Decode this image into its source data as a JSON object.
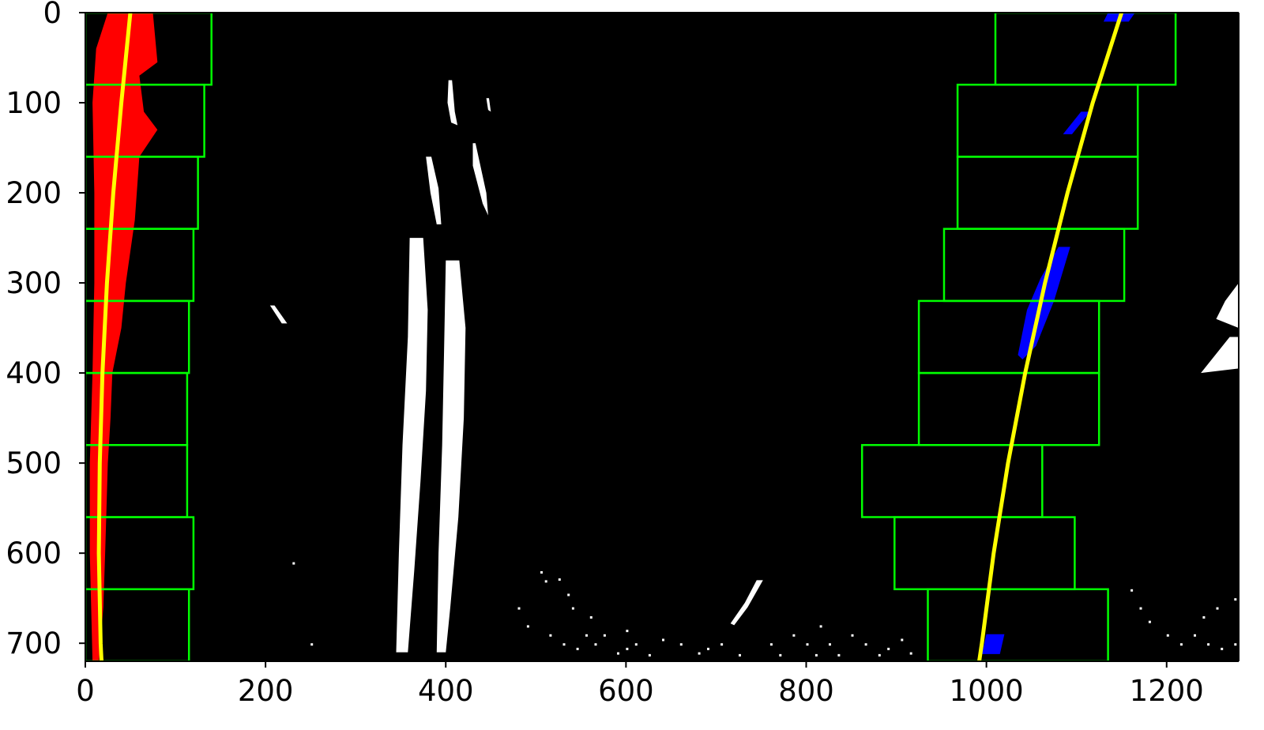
{
  "chart_data": {
    "type": "scatter",
    "title": "",
    "xlabel": "",
    "ylabel": "",
    "xlim": [
      0,
      1280
    ],
    "ylim": [
      720,
      0
    ],
    "grid": false,
    "legend": "none",
    "x_ticks": [
      {
        "value": 0,
        "label": "0"
      },
      {
        "value": 200,
        "label": "200"
      },
      {
        "value": 400,
        "label": "400"
      },
      {
        "value": 600,
        "label": "600"
      },
      {
        "value": 800,
        "label": "800"
      },
      {
        "value": 1000,
        "label": "1000"
      },
      {
        "value": 1200,
        "label": "1200"
      }
    ],
    "y_ticks": [
      {
        "value": 0,
        "label": "0"
      },
      {
        "value": 100,
        "label": "100"
      },
      {
        "value": 200,
        "label": "200"
      },
      {
        "value": 300,
        "label": "300"
      },
      {
        "value": 400,
        "label": "400"
      },
      {
        "value": 500,
        "label": "500"
      },
      {
        "value": 600,
        "label": "600"
      },
      {
        "value": 700,
        "label": "700"
      }
    ],
    "colors": {
      "background": "#000000",
      "road_pixels": "#ffffff",
      "left_lane_pixels": "#ff0000",
      "right_lane_pixels": "#0000ff",
      "fit_line": "#ffff00",
      "window": "#00ff00"
    },
    "left_windows": [
      {
        "x1": 0,
        "x2": 140,
        "y1": 0,
        "y2": 80
      },
      {
        "x1": 0,
        "x2": 132,
        "y1": 80,
        "y2": 160
      },
      {
        "x1": 0,
        "x2": 125,
        "y1": 160,
        "y2": 240
      },
      {
        "x1": 0,
        "x2": 120,
        "y1": 240,
        "y2": 320
      },
      {
        "x1": 0,
        "x2": 115,
        "y1": 320,
        "y2": 400
      },
      {
        "x1": 0,
        "x2": 113,
        "y1": 400,
        "y2": 480
      },
      {
        "x1": 0,
        "x2": 113,
        "y1": 480,
        "y2": 560
      },
      {
        "x1": 0,
        "x2": 120,
        "y1": 560,
        "y2": 640
      },
      {
        "x1": 0,
        "x2": 115,
        "y1": 640,
        "y2": 720
      }
    ],
    "right_windows": [
      {
        "x1": 1010,
        "x2": 1210,
        "y1": 0,
        "y2": 80
      },
      {
        "x1": 968,
        "x2": 1168,
        "y1": 80,
        "y2": 160
      },
      {
        "x1": 968,
        "x2": 1168,
        "y1": 160,
        "y2": 240
      },
      {
        "x1": 953,
        "x2": 1153,
        "y1": 240,
        "y2": 320
      },
      {
        "x1": 925,
        "x2": 1125,
        "y1": 320,
        "y2": 400
      },
      {
        "x1": 925,
        "x2": 1125,
        "y1": 400,
        "y2": 480
      },
      {
        "x1": 862,
        "x2": 1062,
        "y1": 480,
        "y2": 560
      },
      {
        "x1": 898,
        "x2": 1098,
        "y1": 560,
        "y2": 640
      },
      {
        "x1": 935,
        "x2": 1135,
        "y1": 640,
        "y2": 720
      }
    ],
    "left_fit_line": [
      {
        "x": 50,
        "y": 0
      },
      {
        "x": 40,
        "y": 100
      },
      {
        "x": 31,
        "y": 200
      },
      {
        "x": 24,
        "y": 300
      },
      {
        "x": 19,
        "y": 400
      },
      {
        "x": 16,
        "y": 500
      },
      {
        "x": 15,
        "y": 600
      },
      {
        "x": 17,
        "y": 700
      },
      {
        "x": 18,
        "y": 720
      }
    ],
    "right_fit_line": [
      {
        "x": 1150,
        "y": 0
      },
      {
        "x": 1118,
        "y": 100
      },
      {
        "x": 1090,
        "y": 200
      },
      {
        "x": 1065,
        "y": 300
      },
      {
        "x": 1043,
        "y": 400
      },
      {
        "x": 1024,
        "y": 500
      },
      {
        "x": 1008,
        "y": 600
      },
      {
        "x": 995,
        "y": 700
      },
      {
        "x": 992,
        "y": 720
      }
    ],
    "left_lane_region": [
      {
        "x": 40,
        "y": 0
      },
      {
        "x": 75,
        "y": 0
      },
      {
        "x": 80,
        "y": 55
      },
      {
        "x": 60,
        "y": 70
      },
      {
        "x": 65,
        "y": 110
      },
      {
        "x": 80,
        "y": 130
      },
      {
        "x": 60,
        "y": 160
      },
      {
        "x": 55,
        "y": 230
      },
      {
        "x": 45,
        "y": 300
      },
      {
        "x": 40,
        "y": 350
      },
      {
        "x": 30,
        "y": 400
      },
      {
        "x": 28,
        "y": 450
      },
      {
        "x": 25,
        "y": 500
      },
      {
        "x": 22,
        "y": 600
      },
      {
        "x": 20,
        "y": 660
      },
      {
        "x": 15,
        "y": 720
      },
      {
        "x": 8,
        "y": 720
      },
      {
        "x": 5,
        "y": 600
      },
      {
        "x": 5,
        "y": 500
      },
      {
        "x": 8,
        "y": 400
      },
      {
        "x": 10,
        "y": 300
      },
      {
        "x": 10,
        "y": 200
      },
      {
        "x": 8,
        "y": 100
      },
      {
        "x": 12,
        "y": 40
      },
      {
        "x": 25,
        "y": 0
      }
    ],
    "right_lane_blobs": [
      [
        {
          "x": 1135,
          "y": 0
        },
        {
          "x": 1165,
          "y": 0
        },
        {
          "x": 1158,
          "y": 10
        },
        {
          "x": 1130,
          "y": 10
        }
      ],
      [
        {
          "x": 1105,
          "y": 110
        },
        {
          "x": 1115,
          "y": 110
        },
        {
          "x": 1095,
          "y": 135
        },
        {
          "x": 1085,
          "y": 135
        }
      ],
      [
        {
          "x": 1080,
          "y": 260
        },
        {
          "x": 1093,
          "y": 260
        },
        {
          "x": 1075,
          "y": 320
        },
        {
          "x": 1055,
          "y": 370
        },
        {
          "x": 1040,
          "y": 385
        },
        {
          "x": 1035,
          "y": 380
        },
        {
          "x": 1045,
          "y": 330
        },
        {
          "x": 1060,
          "y": 295
        }
      ],
      [
        {
          "x": 1000,
          "y": 690
        },
        {
          "x": 1020,
          "y": 690
        },
        {
          "x": 1015,
          "y": 712
        },
        {
          "x": 995,
          "y": 712
        }
      ]
    ],
    "road_marking_blobs": [
      [
        {
          "x": 360,
          "y": 250
        },
        {
          "x": 375,
          "y": 250
        },
        {
          "x": 380,
          "y": 330
        },
        {
          "x": 378,
          "y": 420
        },
        {
          "x": 372,
          "y": 520
        },
        {
          "x": 365,
          "y": 620
        },
        {
          "x": 358,
          "y": 710
        },
        {
          "x": 345,
          "y": 710
        },
        {
          "x": 348,
          "y": 600
        },
        {
          "x": 352,
          "y": 480
        },
        {
          "x": 358,
          "y": 360
        }
      ],
      [
        {
          "x": 400,
          "y": 275
        },
        {
          "x": 415,
          "y": 275
        },
        {
          "x": 422,
          "y": 350
        },
        {
          "x": 420,
          "y": 450
        },
        {
          "x": 414,
          "y": 560
        },
        {
          "x": 405,
          "y": 660
        },
        {
          "x": 400,
          "y": 710
        },
        {
          "x": 390,
          "y": 710
        },
        {
          "x": 392,
          "y": 600
        },
        {
          "x": 396,
          "y": 480
        },
        {
          "x": 398,
          "y": 380
        }
      ],
      [
        {
          "x": 403,
          "y": 75
        },
        {
          "x": 407,
          "y": 75
        },
        {
          "x": 410,
          "y": 110
        },
        {
          "x": 413,
          "y": 125
        },
        {
          "x": 406,
          "y": 122
        },
        {
          "x": 402,
          "y": 100
        }
      ],
      [
        {
          "x": 378,
          "y": 160
        },
        {
          "x": 384,
          "y": 160
        },
        {
          "x": 392,
          "y": 195
        },
        {
          "x": 395,
          "y": 235
        },
        {
          "x": 390,
          "y": 235
        },
        {
          "x": 383,
          "y": 200
        }
      ],
      [
        {
          "x": 430,
          "y": 145
        },
        {
          "x": 433,
          "y": 145
        },
        {
          "x": 445,
          "y": 200
        },
        {
          "x": 447,
          "y": 225
        },
        {
          "x": 441,
          "y": 212
        },
        {
          "x": 430,
          "y": 170
        }
      ],
      [
        {
          "x": 445,
          "y": 95
        },
        {
          "x": 448,
          "y": 95
        },
        {
          "x": 450,
          "y": 110
        },
        {
          "x": 447,
          "y": 108
        }
      ],
      [
        {
          "x": 1265,
          "y": 320
        },
        {
          "x": 1280,
          "y": 300
        },
        {
          "x": 1280,
          "y": 350
        },
        {
          "x": 1255,
          "y": 340
        }
      ],
      [
        {
          "x": 1270,
          "y": 360
        },
        {
          "x": 1280,
          "y": 360
        },
        {
          "x": 1280,
          "y": 395
        },
        {
          "x": 1238,
          "y": 400
        },
        {
          "x": 1250,
          "y": 385
        }
      ],
      [
        {
          "x": 745,
          "y": 630
        },
        {
          "x": 752,
          "y": 630
        },
        {
          "x": 735,
          "y": 660
        },
        {
          "x": 720,
          "y": 680
        },
        {
          "x": 716,
          "y": 678
        },
        {
          "x": 732,
          "y": 655
        }
      ],
      [
        {
          "x": 205,
          "y": 325
        },
        {
          "x": 210,
          "y": 325
        },
        {
          "x": 224,
          "y": 345
        },
        {
          "x": 218,
          "y": 345
        }
      ]
    ],
    "road_speckle_points": [
      [
        230,
        610
      ],
      [
        250,
        700
      ],
      [
        480,
        660
      ],
      [
        505,
        620
      ],
      [
        510,
        630
      ],
      [
        525,
        628
      ],
      [
        535,
        645
      ],
      [
        490,
        680
      ],
      [
        515,
        690
      ],
      [
        530,
        700
      ],
      [
        545,
        705
      ],
      [
        555,
        690
      ],
      [
        565,
        700
      ],
      [
        590,
        710
      ],
      [
        600,
        685
      ],
      [
        610,
        700
      ],
      [
        625,
        712
      ],
      [
        640,
        695
      ],
      [
        660,
        700
      ],
      [
        680,
        710
      ],
      [
        690,
        705
      ],
      [
        705,
        700
      ],
      [
        725,
        712
      ],
      [
        760,
        700
      ],
      [
        770,
        712
      ],
      [
        785,
        690
      ],
      [
        800,
        700
      ],
      [
        810,
        712
      ],
      [
        815,
        680
      ],
      [
        825,
        700
      ],
      [
        835,
        712
      ],
      [
        850,
        690
      ],
      [
        865,
        700
      ],
      [
        880,
        712
      ],
      [
        890,
        705
      ],
      [
        905,
        695
      ],
      [
        915,
        710
      ],
      [
        575,
        720
      ],
      [
        540,
        660
      ],
      [
        560,
        670
      ],
      [
        575,
        690
      ],
      [
        600,
        705
      ],
      [
        1160,
        640
      ],
      [
        1170,
        660
      ],
      [
        1180,
        675
      ],
      [
        1200,
        690
      ],
      [
        1215,
        700
      ],
      [
        1230,
        690
      ],
      [
        1245,
        700
      ],
      [
        1260,
        705
      ],
      [
        1275,
        700
      ],
      [
        1275,
        650
      ],
      [
        1255,
        660
      ],
      [
        1240,
        670
      ]
    ]
  }
}
